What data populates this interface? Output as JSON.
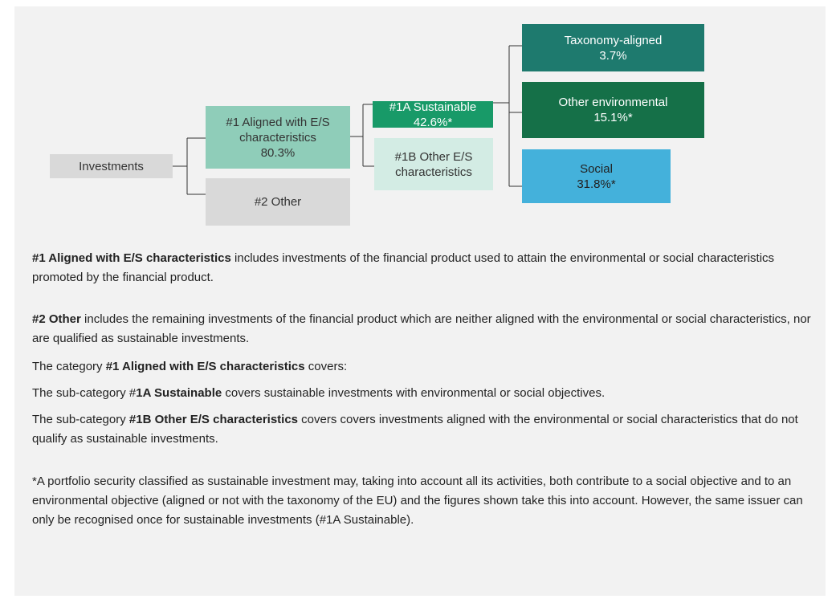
{
  "nodes": [
    {
      "label": "Investments",
      "color": "#d9d9d9",
      "text_color": "#333333"
    },
    {
      "label": "#1 Aligned with E/S characteristics",
      "value": "80.3%",
      "color": "#8fcdb9",
      "text_color": "#333333"
    },
    {
      "label": "#2 Other",
      "color": "#d9d9d9",
      "text_color": "#333333"
    },
    {
      "label": "#1A Sustainable",
      "value": "42.6%*",
      "color": "#189a68",
      "text_color": "#ffffff"
    },
    {
      "label": "#1B Other E/S characteristics",
      "color": "#d3ece4",
      "text_color": "#333333"
    },
    {
      "label": "Taxonomy-aligned",
      "value": "3.7%",
      "color": "#1e7a6e",
      "text_color": "#ffffff"
    },
    {
      "label": "Other environmental",
      "value": "15.1%*",
      "color": "#157048",
      "text_color": "#ffffff"
    },
    {
      "label": "Social",
      "value": "31.8%*",
      "color": "#44b1db",
      "text_color": "#222222"
    }
  ],
  "paragraphs": [
    [
      {
        "bold": "#1 Aligned with E/S characteristics"
      },
      {
        "text": " includes investments  of the financial product used to attain the environmental or social characteristics promoted by the financial product."
      }
    ],
    [
      {
        "bold": "#2 Other"
      },
      {
        "text": " includes the remaining investments of the financial product which are neither aligned with the environmental or social characteristics, nor are qualified as sustainable investments."
      }
    ],
    [
      {
        "text": "The category "
      },
      {
        "bold": "#1 Aligned with E/S characteristics"
      },
      {
        "text": " covers:"
      }
    ],
    [
      {
        "text": "The sub-category #"
      },
      {
        "bold": "1A Sustainable"
      },
      {
        "text": " covers sustainable investments with environmental or social objectives."
      }
    ],
    [
      {
        "text": "The sub-category "
      },
      {
        "bold": "#1B Other E/S characteristics"
      },
      {
        "text": " covers covers investments aligned with the environmental or social characteristics that do not qualify as sustainable investments."
      }
    ],
    [
      {
        "text": "*A portfolio security classified as sustainable investment may, taking into account all its activities, both contribute to a social objective and to an environmental objective (aligned or not with the taxonomy of the EU) and the figures shown take this into account. However, the same issuer can only be recognised once for sustainable investments (#1A Sustainable)."
      }
    ]
  ]
}
